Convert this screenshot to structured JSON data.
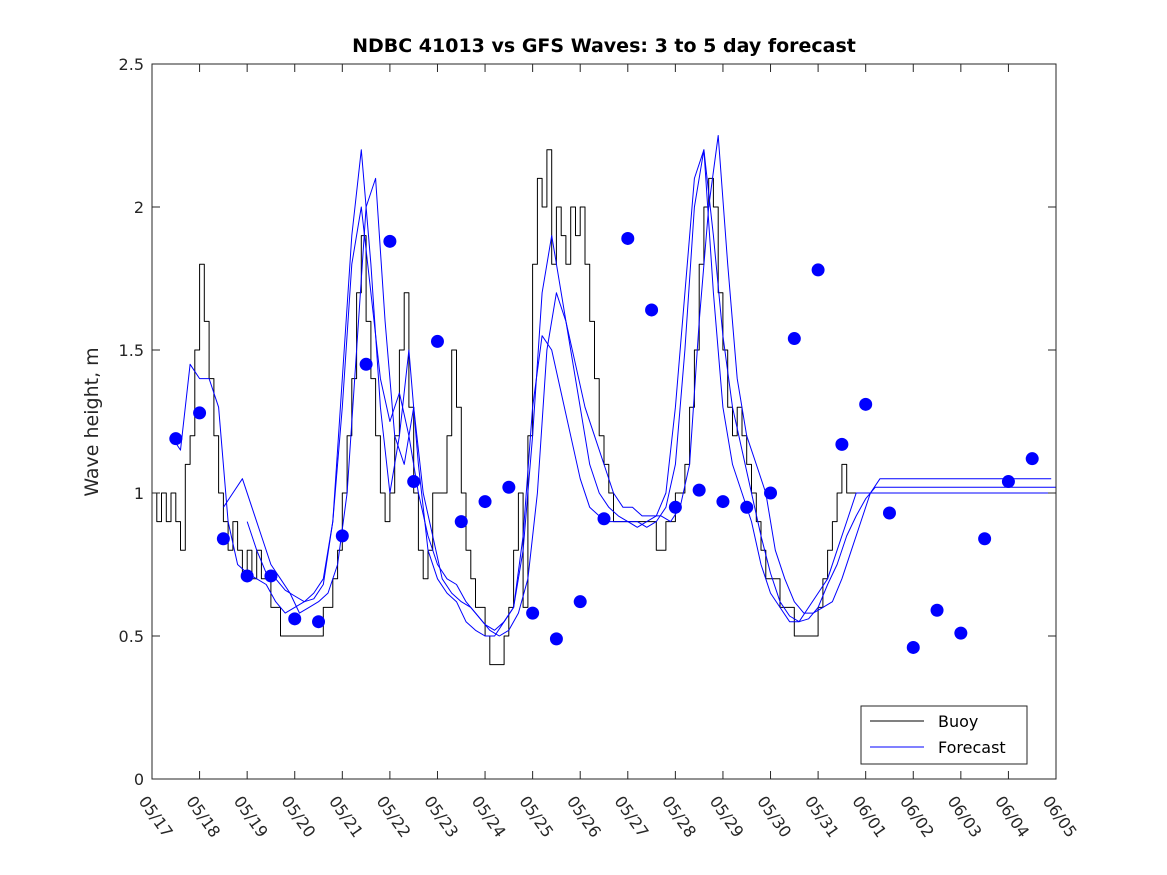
{
  "chart_data": {
    "type": "line",
    "title": "NDBC 41013 vs GFS Waves: 3 to 5 day forecast",
    "xlabel": "",
    "ylabel": "Wave height, m",
    "xlim": [
      "05/17",
      "06/05"
    ],
    "ylim": [
      0,
      2.5
    ],
    "grid": false,
    "legend_position": "bottom-right",
    "x_tick_labels": [
      "05/17",
      "05/18",
      "05/19",
      "05/20",
      "05/21",
      "05/22",
      "05/23",
      "05/24",
      "05/25",
      "05/26",
      "05/27",
      "05/28",
      "05/29",
      "05/30",
      "05/31",
      "06/01",
      "06/02",
      "06/03",
      "06/04",
      "06/05"
    ],
    "y_tick_labels": [
      "0",
      "0.5",
      "1",
      "1.5",
      "2",
      "2.5"
    ],
    "y_ticks": [
      0,
      0.5,
      1,
      1.5,
      2,
      2.5
    ],
    "colors": {
      "buoy": "#000000",
      "forecast": "#0000ff"
    },
    "series": [
      {
        "name": "Buoy",
        "style": "line",
        "x": [
          0,
          0.1,
          0.2,
          0.3,
          0.4,
          0.5,
          0.6,
          0.7,
          0.8,
          0.9,
          1.0,
          1.1,
          1.2,
          1.3,
          1.4,
          1.5,
          1.6,
          1.7,
          1.8,
          1.9,
          2.0,
          2.1,
          2.2,
          2.3,
          2.4,
          2.5,
          2.6,
          2.7,
          2.8,
          2.9,
          3.0,
          3.1,
          3.2,
          3.3,
          3.4,
          3.5,
          3.6,
          3.7,
          3.8,
          3.9,
          4.0,
          4.1,
          4.2,
          4.3,
          4.4,
          4.5,
          4.6,
          4.7,
          4.8,
          4.9,
          5.0,
          5.1,
          5.2,
          5.3,
          5.4,
          5.5,
          5.6,
          5.7,
          5.8,
          5.9,
          6.0,
          6.1,
          6.2,
          6.3,
          6.4,
          6.5,
          6.6,
          6.7,
          6.8,
          6.9,
          7.0,
          7.1,
          7.2,
          7.3,
          7.4,
          7.5,
          7.6,
          7.7,
          7.8,
          7.9,
          8.0,
          8.1,
          8.2,
          8.3,
          8.4,
          8.5,
          8.6,
          8.7,
          8.8,
          8.9,
          9.0,
          9.1,
          9.2,
          9.3,
          9.4,
          9.5,
          9.6,
          9.7,
          9.8,
          9.9,
          10.0,
          10.1,
          10.2,
          10.3,
          10.4,
          10.5,
          10.6,
          10.7,
          10.8,
          10.9,
          11.0,
          11.1,
          11.2,
          11.3,
          11.4,
          11.5,
          11.6,
          11.7,
          11.8,
          11.9,
          12.0,
          12.1,
          12.2,
          12.3,
          12.4,
          12.5,
          12.6,
          12.7,
          12.8,
          12.9,
          13.0,
          13.1,
          13.2,
          13.3,
          13.4,
          13.5,
          13.6,
          13.7,
          13.8,
          13.9,
          14.0,
          14.1,
          14.2,
          14.3,
          14.4,
          14.5,
          14.6,
          14.7,
          14.8,
          14.9,
          15.0,
          15.1,
          15.2,
          15.3,
          15.4,
          15.5,
          15.6,
          15.7,
          15.8,
          15.9,
          16.0,
          16.1,
          16.2,
          16.3,
          16.4,
          16.5,
          16.6,
          16.7,
          16.8,
          16.9,
          17.0,
          17.1,
          17.2,
          17.3,
          17.4,
          17.5,
          17.6,
          17.7,
          17.8,
          17.9,
          18.0,
          18.1,
          18.2,
          18.3,
          18.4,
          18.5,
          18.6,
          18.7,
          18.8,
          18.9,
          19.0
        ],
        "y": [
          1.0,
          0.9,
          1.0,
          0.9,
          1.0,
          0.9,
          0.8,
          1.1,
          1.2,
          1.5,
          1.8,
          1.6,
          1.4,
          1.2,
          1.0,
          0.9,
          0.8,
          0.9,
          0.8,
          0.7,
          0.8,
          0.7,
          0.8,
          0.7,
          0.7,
          0.6,
          0.6,
          0.5,
          0.5,
          0.5,
          0.5,
          0.5,
          0.5,
          0.5,
          0.5,
          0.5,
          0.6,
          0.6,
          0.7,
          0.8,
          1.0,
          1.2,
          1.4,
          1.7,
          1.9,
          1.6,
          1.4,
          1.2,
          1.0,
          0.9,
          1.0,
          1.2,
          1.5,
          1.7,
          1.3,
          1.0,
          0.8,
          0.7,
          0.8,
          1.0,
          1.0,
          1.0,
          1.2,
          1.5,
          1.3,
          1.0,
          0.8,
          0.7,
          0.6,
          0.6,
          0.5,
          0.4,
          0.4,
          0.4,
          0.5,
          0.6,
          0.8,
          1.0,
          0.6,
          1.2,
          1.8,
          2.1,
          2.0,
          2.2,
          1.8,
          2.0,
          1.9,
          1.8,
          2.0,
          1.9,
          2.0,
          1.8,
          1.6,
          1.4,
          1.2,
          1.1,
          1.0,
          0.9,
          0.9,
          0.9,
          0.9,
          0.9,
          0.9,
          0.9,
          0.9,
          0.9,
          0.8,
          0.8,
          0.9,
          0.9,
          1.0,
          1.0,
          1.1,
          1.3,
          1.5,
          1.8,
          2.0,
          2.1,
          2.0,
          1.7,
          1.5,
          1.3,
          1.2,
          1.3,
          1.2,
          1.1,
          1.0,
          0.9,
          0.8,
          0.7,
          0.7,
          0.7,
          0.6,
          0.6,
          0.6,
          0.5,
          0.5,
          0.5,
          0.5,
          0.5,
          0.6,
          0.7,
          0.8,
          0.9,
          1.0,
          1.1,
          1.0,
          1.0,
          1.0,
          1.0,
          1.0,
          1.0,
          1.0,
          1.0,
          1.0,
          1.0,
          1.0,
          1.0,
          1.0,
          1.0,
          1.0,
          1.0,
          1.0,
          1.0,
          1.0,
          1.0,
          1.0,
          1.0,
          1.0,
          1.0,
          1.0,
          1.0,
          1.0,
          1.0,
          1.0,
          1.0,
          1.0,
          1.0,
          1.0,
          1.0,
          1.0,
          1.0,
          1.0,
          1.0,
          1.0,
          1.0,
          1.0,
          1.0,
          1.0,
          1.0,
          1.0
        ]
      },
      {
        "name": "Forecast",
        "style": "lines",
        "lines": [
          {
            "x": [
              0.4,
              0.6,
              0.8,
              1.0,
              1.2,
              1.4,
              1.6,
              1.8,
              2.0,
              2.2,
              2.4,
              2.6,
              2.8,
              3.0,
              3.2,
              3.4,
              3.6,
              3.8,
              4.0,
              4.2,
              4.4,
              4.6,
              4.8,
              5.0,
              5.2,
              5.4,
              5.6,
              5.8,
              6.0,
              6.2,
              6.4,
              6.6,
              6.8,
              7.0,
              7.2,
              7.4,
              7.6,
              7.8,
              8.0,
              8.2,
              8.4,
              8.6,
              8.8,
              9.0,
              9.2,
              9.4,
              9.6,
              9.8,
              10.0,
              10.2,
              10.4,
              10.6,
              10.8,
              11.0,
              11.2,
              11.4,
              11.6,
              11.8,
              12.0,
              12.2,
              12.4,
              12.6,
              12.8,
              13.0,
              13.2,
              13.4,
              13.6,
              13.8,
              14.0,
              14.2,
              14.4,
              14.6,
              14.8,
              15.0,
              15.2,
              15.4,
              15.6,
              15.8,
              16.0,
              16.2,
              16.4,
              16.6,
              16.8,
              17.0,
              17.2,
              17.4,
              17.6,
              17.8,
              18.0,
              18.2,
              18.4,
              18.6,
              18.8,
              19.0
            ],
            "y": [
              1.2,
              1.15,
              1.45,
              1.4,
              1.4,
              1.3,
              0.9,
              0.75,
              0.72,
              0.7,
              0.68,
              0.62,
              0.58,
              0.6,
              0.62,
              0.65,
              0.7,
              0.9,
              1.4,
              1.9,
              2.2,
              1.8,
              1.3,
              1.0,
              1.2,
              1.5,
              1.1,
              0.8,
              0.7,
              0.65,
              0.62,
              0.55,
              0.52,
              0.5,
              0.5,
              0.55,
              0.6,
              0.8,
              1.2,
              1.7,
              1.9,
              1.7,
              1.5,
              1.3,
              1.1,
              1.0,
              0.95,
              0.92,
              0.9,
              0.9,
              0.88,
              0.9,
              0.95,
              1.1,
              1.5,
              2.0,
              2.2,
              1.7,
              1.3,
              1.1,
              1.0,
              0.9,
              0.75,
              0.65,
              0.6,
              0.55,
              0.55,
              0.6,
              0.65,
              0.7,
              0.8,
              0.9,
              1.0,
              1.0,
              1.0,
              1.0,
              1.0,
              1.0,
              1.0,
              1.0,
              1.0,
              1.0,
              1.0,
              1.0,
              1.0,
              1.0,
              1.0,
              1.0,
              1.0,
              1.0,
              1.0,
              1.0,
              1.0,
              1.0
            ]
          },
          {
            "x": [
              1.5,
              1.7,
              1.9,
              2.1,
              2.3,
              2.5,
              2.7,
              2.9,
              3.1,
              3.3,
              3.5,
              3.7,
              3.9,
              4.1,
              4.3,
              4.5,
              4.7,
              4.9,
              5.1,
              5.3,
              5.5,
              5.7,
              5.9,
              6.1,
              6.3,
              6.5,
              6.7,
              6.9,
              7.1,
              7.3,
              7.5,
              7.7,
              7.9,
              8.1,
              8.3,
              8.5,
              8.7,
              8.9,
              9.1,
              9.3,
              9.5,
              9.7,
              9.9,
              10.1,
              10.3,
              10.5,
              10.7,
              10.9,
              11.1,
              11.3,
              11.5,
              11.7,
              11.9,
              12.1,
              12.3,
              12.5,
              12.7,
              12.9,
              13.1,
              13.3,
              13.5,
              13.7,
              13.9,
              14.1,
              14.3,
              14.5,
              14.7,
              14.9,
              15.1,
              15.3,
              15.5,
              15.7,
              15.9,
              16.1,
              16.3,
              16.5,
              16.7,
              16.9,
              17.1,
              17.3,
              17.5,
              17.7,
              17.9,
              18.1,
              18.3,
              18.5,
              18.7,
              18.9
            ],
            "y": [
              0.95,
              1.0,
              1.05,
              0.95,
              0.85,
              0.75,
              0.7,
              0.65,
              0.58,
              0.6,
              0.62,
              0.65,
              0.75,
              1.0,
              1.5,
              2.0,
              2.1,
              1.6,
              1.2,
              1.1,
              1.3,
              1.0,
              0.85,
              0.7,
              0.65,
              0.62,
              0.6,
              0.56,
              0.52,
              0.5,
              0.52,
              0.58,
              0.7,
              1.0,
              1.5,
              1.7,
              1.6,
              1.45,
              1.3,
              1.2,
              1.1,
              1.0,
              0.95,
              0.95,
              0.92,
              0.92,
              0.92,
              0.9,
              0.95,
              1.1,
              1.6,
              2.0,
              2.25,
              1.8,
              1.4,
              1.2,
              1.1,
              1.0,
              0.8,
              0.7,
              0.62,
              0.58,
              0.58,
              0.6,
              0.62,
              0.7,
              0.8,
              0.9,
              1.0,
              1.05,
              1.05,
              1.05,
              1.05,
              1.05,
              1.05,
              1.05,
              1.05,
              1.05,
              1.05,
              1.05,
              1.05,
              1.05,
              1.05,
              1.05,
              1.05,
              1.05,
              1.05,
              1.05
            ]
          },
          {
            "x": [
              2.0,
              2.2,
              2.4,
              2.6,
              2.8,
              3.0,
              3.2,
              3.4,
              3.6,
              3.8,
              4.0,
              4.2,
              4.4,
              4.6,
              4.8,
              5.0,
              5.2,
              5.4,
              5.6,
              5.8,
              6.0,
              6.2,
              6.4,
              6.6,
              6.8,
              7.0,
              7.2,
              7.4,
              7.6,
              7.8,
              8.0,
              8.2,
              8.4,
              8.6,
              8.8,
              9.0,
              9.2,
              9.4,
              9.6,
              9.8,
              10.0,
              10.2,
              10.4,
              10.6,
              10.8,
              11.0,
              11.2,
              11.4,
              11.6,
              11.8,
              12.0,
              12.2,
              12.4,
              12.6,
              12.8,
              13.0,
              13.2,
              13.4,
              13.6,
              13.8,
              14.0,
              14.2,
              14.4,
              14.6,
              14.8,
              15.0,
              15.2,
              15.4,
              15.6,
              15.8,
              16.0,
              16.2,
              16.4,
              16.6,
              16.8,
              17.0,
              17.2,
              17.4,
              17.6,
              17.8,
              18.0,
              18.2,
              18.4,
              18.6,
              18.8,
              19.0
            ],
            "y": [
              0.9,
              0.8,
              0.72,
              0.7,
              0.66,
              0.64,
              0.62,
              0.63,
              0.68,
              0.9,
              1.3,
              1.8,
              2.0,
              1.7,
              1.4,
              1.25,
              1.35,
              1.2,
              1.0,
              0.85,
              0.75,
              0.7,
              0.68,
              0.62,
              0.58,
              0.54,
              0.52,
              0.55,
              0.6,
              0.85,
              1.3,
              1.55,
              1.5,
              1.35,
              1.2,
              1.05,
              0.95,
              0.92,
              0.9,
              0.9,
              0.9,
              0.88,
              0.9,
              0.92,
              1.0,
              1.3,
              1.7,
              2.1,
              2.2,
              1.9,
              1.55,
              1.3,
              1.15,
              1.0,
              0.85,
              0.72,
              0.62,
              0.57,
              0.55,
              0.56,
              0.6,
              0.68,
              0.75,
              0.85,
              0.92,
              0.98,
              1.02,
              1.02,
              1.02,
              1.02,
              1.02,
              1.02,
              1.02,
              1.02,
              1.02,
              1.02,
              1.02,
              1.02,
              1.02,
              1.02,
              1.02,
              1.02,
              1.02,
              1.02,
              1.02,
              1.02
            ]
          }
        ]
      },
      {
        "name": "",
        "style": "markers",
        "color": "#0000ff",
        "x": [
          0.5,
          1.0,
          1.5,
          2.0,
          2.5,
          3.0,
          3.5,
          4.0,
          4.5,
          5.0,
          5.5,
          6.0,
          6.5,
          7.0,
          7.5,
          8.0,
          8.5,
          9.0,
          9.5,
          10.0,
          10.5,
          11.0,
          11.5,
          12.0,
          12.5,
          13.0,
          13.5,
          14.0,
          14.5,
          15.0,
          15.5,
          16.0,
          16.5,
          17.0,
          17.5,
          18.0,
          18.5
        ],
        "y": [
          1.19,
          1.28,
          0.84,
          0.71,
          0.71,
          0.56,
          0.55,
          0.85,
          1.45,
          1.88,
          1.04,
          1.53,
          0.9,
          0.97,
          1.02,
          0.58,
          0.49,
          0.62,
          0.91,
          1.89,
          1.64,
          0.95,
          1.01,
          0.97,
          0.95,
          1.0,
          1.54,
          1.78,
          1.17,
          1.31,
          0.93,
          0.46,
          0.59,
          0.51,
          0.84,
          1.04,
          1.12
        ]
      }
    ],
    "legend": [
      "Buoy",
      "Forecast"
    ]
  }
}
